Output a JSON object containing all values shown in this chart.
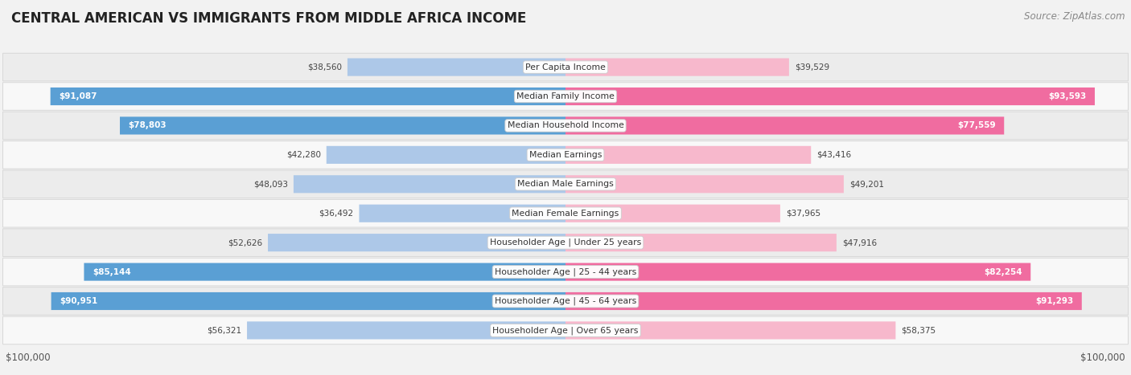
{
  "title": "CENTRAL AMERICAN VS IMMIGRANTS FROM MIDDLE AFRICA INCOME",
  "source": "Source: ZipAtlas.com",
  "categories": [
    "Per Capita Income",
    "Median Family Income",
    "Median Household Income",
    "Median Earnings",
    "Median Male Earnings",
    "Median Female Earnings",
    "Householder Age | Under 25 years",
    "Householder Age | 25 - 44 years",
    "Householder Age | 45 - 64 years",
    "Householder Age | Over 65 years"
  ],
  "central_american": [
    38560,
    91087,
    78803,
    42280,
    48093,
    36492,
    52626,
    85144,
    90951,
    56321
  ],
  "middle_africa": [
    39529,
    93593,
    77559,
    43416,
    49201,
    37965,
    47916,
    82254,
    91293,
    58375
  ],
  "max_val": 100000,
  "color_blue_light": "#adc8e8",
  "color_blue_dark": "#5a9fd4",
  "color_pink_light": "#f7b8cc",
  "color_pink_dark": "#f06ca0",
  "blue_threshold": 65000,
  "pink_threshold": 65000,
  "bg_color": "#f2f2f2",
  "row_bg_even": "#ececec",
  "row_bg_odd": "#f8f8f8",
  "row_border": "#d8d8d8"
}
